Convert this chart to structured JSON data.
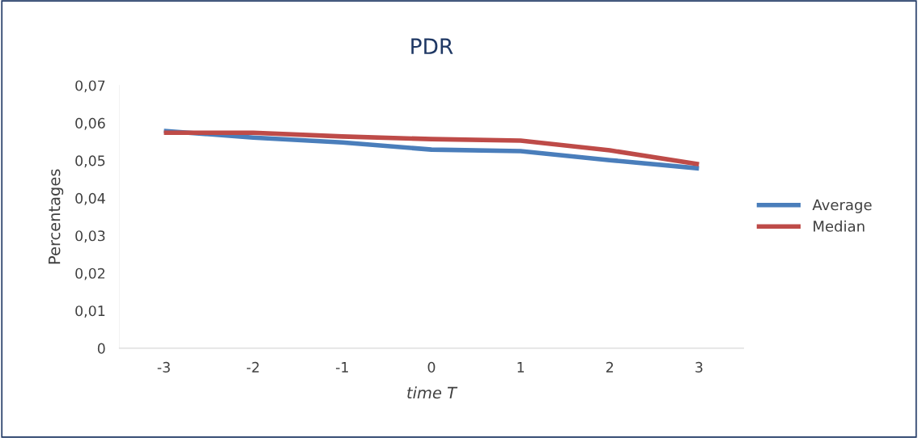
{
  "chart_data": {
    "type": "line",
    "title": "PDR",
    "xlabel": "time T",
    "ylabel": "Percentages",
    "categories": [
      "-3",
      "-2",
      "-1",
      "0",
      "1",
      "2",
      "3"
    ],
    "series": [
      {
        "name": "Average",
        "color": "#4a7ebb",
        "values": [
          0.0579,
          0.0561,
          0.0548,
          0.0529,
          0.0525,
          0.0501,
          0.0479
        ]
      },
      {
        "name": "Median",
        "color": "#be4b48",
        "values": [
          0.0574,
          0.0574,
          0.0564,
          0.0557,
          0.0553,
          0.0527,
          0.049
        ]
      }
    ],
    "ylim": [
      0,
      0.07
    ],
    "yticks": [
      0,
      {
        "value": 0.01,
        "label": "0,01"
      },
      {
        "value": 0.02,
        "label": "0,02"
      },
      {
        "value": 0.03,
        "label": "0,03"
      },
      {
        "value": 0.04,
        "label": "0,04"
      },
      {
        "value": 0.05,
        "label": "0,05"
      },
      {
        "value": 0.06,
        "label": "0,06"
      },
      {
        "value": 0.07,
        "label": "0,07"
      }
    ],
    "grid": false,
    "legend": "right",
    "marker": "none",
    "line_style": "solid"
  }
}
